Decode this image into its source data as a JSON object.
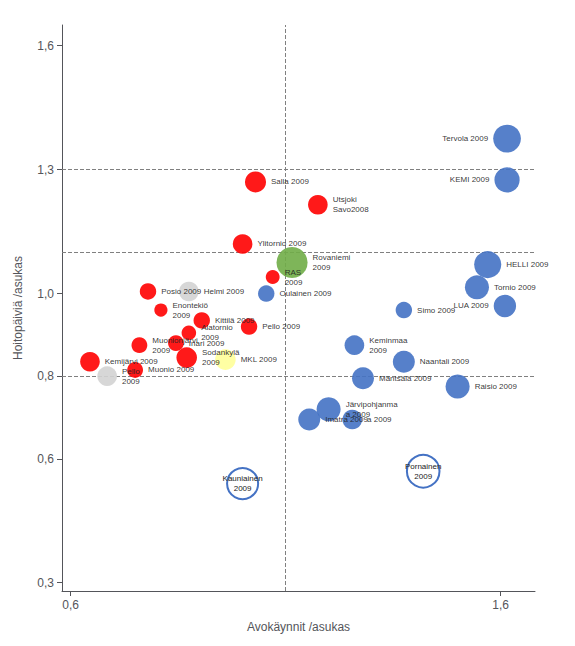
{
  "chart_data": {
    "type": "scatter",
    "xlabel": "Avokäynnit /asukas",
    "ylabel": "Hoitopäiviä /asukas",
    "xlim": [
      0.58,
      1.68
    ],
    "ylim": [
      0.28,
      1.65
    ],
    "xticks": [
      {
        "value": 0.6,
        "label": "0,6"
      },
      {
        "value": 1.6,
        "label": "1,6"
      }
    ],
    "yticks": [
      {
        "value": 0.3,
        "label": "0,3"
      },
      {
        "value": 0.6,
        "label": "0,6"
      },
      {
        "value": 0.8,
        "label": "0,8"
      },
      {
        "value": 1.0,
        "label": "1,0"
      },
      {
        "value": 1.3,
        "label": "1,3"
      },
      {
        "value": 1.6,
        "label": "1,6"
      }
    ],
    "grid": false,
    "vlines": [
      1.1
    ],
    "hlines": [
      0.8,
      1.1,
      1.3
    ],
    "series": [
      {
        "marker": "circle",
        "labels": [
          "Tervola 2009",
          "KEMI 2009",
          "Salla 2009",
          "Utsjoki\nSavo2008",
          "Ylitornio 2009",
          "Rovaniemi\n2009",
          "RAS\n2009",
          "HELLI 2009",
          "Tornio 2009",
          "LUA 2009",
          "Oulainen 2009",
          "Posio 2009",
          "Helmi 2009",
          "Enontekiö\n2009",
          "Kittilä 2009",
          "Pello 2009",
          "Simo 2009",
          "Alatornio\n2009",
          "Inari 2009",
          "Muonionjärvi\n2009",
          "Sodankylä\n2009",
          "MKL 2009",
          "Keminmaa\n2009",
          "Naantali 2009",
          "Kemijärvi 2009",
          "Muonio 2009",
          "Pello\n2009",
          "Mäntsälä 2009",
          "Raisio 2009",
          "Järvipohjanma\na 2009",
          "Imatra 2009",
          "a 2009"
        ],
        "x": [
          1.615,
          1.615,
          1.03,
          1.175,
          1.0,
          1.115,
          1.07,
          1.57,
          1.545,
          1.61,
          1.055,
          0.78,
          0.875,
          0.81,
          0.905,
          1.015,
          1.375,
          0.875,
          0.845,
          0.76,
          0.87,
          0.96,
          1.26,
          1.375,
          0.645,
          0.75,
          0.685,
          1.28,
          1.5,
          1.2,
          1.155,
          1.255
        ],
        "y": [
          1.375,
          1.275,
          1.27,
          1.215,
          1.12,
          1.075,
          1.04,
          1.07,
          1.015,
          0.97,
          1.0,
          1.005,
          1.005,
          0.96,
          0.935,
          0.92,
          0.96,
          0.905,
          0.88,
          0.875,
          0.845,
          0.84,
          0.875,
          0.835,
          0.835,
          0.815,
          0.8,
          0.795,
          0.775,
          0.72,
          0.695,
          0.695
        ],
        "sizes": [
          400,
          330,
          230,
          200,
          200,
          500,
          100,
          380,
          300,
          260,
          140,
          140,
          200,
          90,
          140,
          140,
          140,
          110,
          130,
          130,
          220,
          220,
          200,
          250,
          200,
          130,
          200,
          250,
          300,
          300,
          250,
          200
        ],
        "colors": [
          "#4472C4",
          "#4472C4",
          "#FF0000",
          "#FF0000",
          "#FF0000",
          "#70AD47",
          "#FF0000",
          "#4472C4",
          "#4472C4",
          "#4472C4",
          "#4472C4",
          "#FF0000",
          "#D3D3D3",
          "#FF0000",
          "#FF0000",
          "#FF0000",
          "#4472C4",
          "#FF0000",
          "#FF0000",
          "#FF0000",
          "#FF0000",
          "#FFFF99",
          "#4472C4",
          "#4472C4",
          "#FF0000",
          "#FF0000",
          "#D3D3D3",
          "#4472C4",
          "#4472C4",
          "#4472C4",
          "#4472C4",
          "#4472C4"
        ]
      },
      {
        "marker": "ring",
        "color": "#4472C4",
        "labels": [
          "Kauniainen\n2009",
          "Pornainen\n2009"
        ],
        "x": [
          1.0,
          1.42
        ],
        "y": [
          0.54,
          0.57
        ],
        "sizes": [
          500,
          550
        ]
      }
    ]
  }
}
